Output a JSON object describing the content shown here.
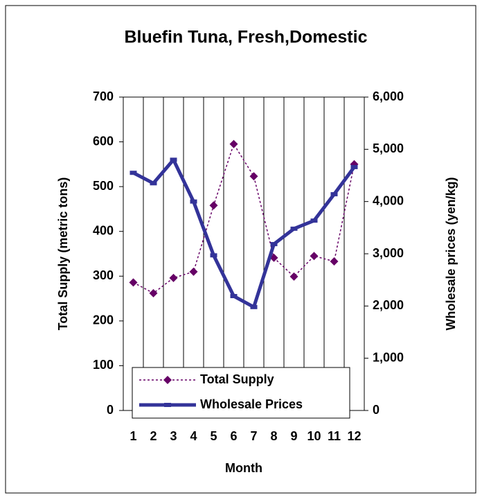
{
  "chart_data": {
    "type": "line",
    "title": "Bluefin Tuna, Fresh,Domestic",
    "x_label": "Month",
    "y_label": "Total Supply (metric tons)",
    "y2_label": "Wholesale prices (yen/kg)",
    "categories": [
      "1",
      "2",
      "3",
      "4",
      "5",
      "6",
      "7",
      "8",
      "9",
      "10",
      "11",
      "12"
    ],
    "series": [
      {
        "name": "Total Supply",
        "color": "#660066",
        "values": [
          286,
          262,
          296,
          310,
          458,
          595,
          523,
          341,
          299,
          345,
          333,
          550
        ]
      },
      {
        "name": "Wholesale Prices",
        "color": "#333399",
        "axis": "y2",
        "values": [
          4550,
          4350,
          4800,
          4000,
          2970,
          2190,
          1980,
          3185,
          3480,
          3635,
          4140,
          4660
        ]
      }
    ],
    "ylim": [
      0,
      700
    ],
    "yticks": [
      0,
      100,
      200,
      300,
      400,
      500,
      600,
      700
    ],
    "y2lim": [
      0,
      6000
    ],
    "y2ticks": [
      0,
      {
        "value": 1000,
        "label": "1,000"
      },
      {
        "value": 2000,
        "label": "2,000"
      },
      {
        "value": 3000,
        "label": "3,000"
      },
      {
        "value": 4000,
        "label": "4,000"
      },
      {
        "value": 5000,
        "label": "5,000"
      },
      {
        "value": 6000,
        "label": "6,000"
      }
    ],
    "grid": true,
    "legend": "bottom-left"
  }
}
